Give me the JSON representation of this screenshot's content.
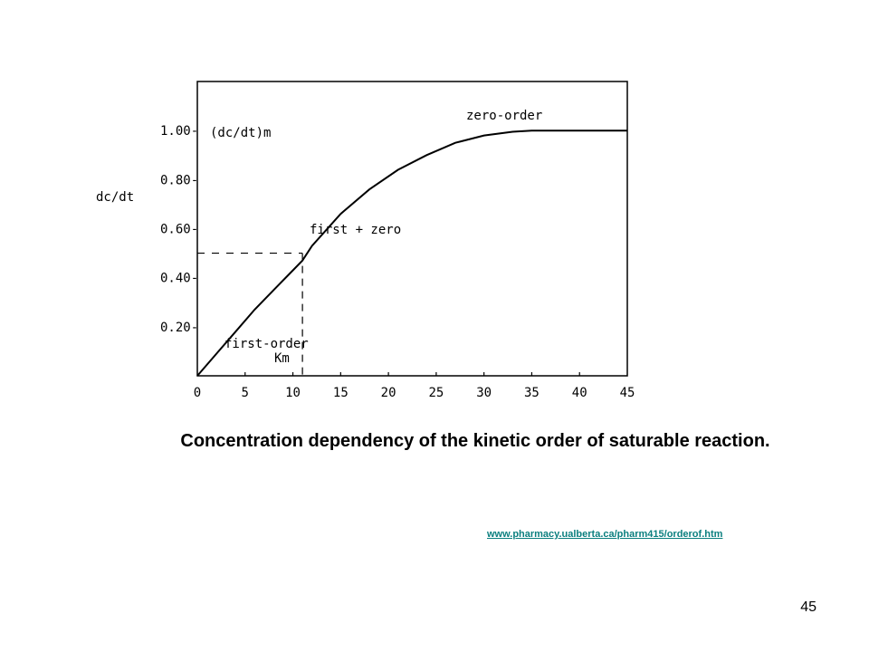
{
  "chart_data": {
    "type": "line",
    "title": "",
    "xlabel": "",
    "ylabel": "dc/dt",
    "xlim": [
      0,
      45
    ],
    "ylim": [
      0,
      1.2
    ],
    "x_ticks": [
      "0",
      "5",
      "10",
      "15",
      "20",
      "25",
      "30",
      "35",
      "40",
      "45"
    ],
    "y_ticks": [
      "0.20-",
      "0.40-",
      "0.60-",
      "0.80-",
      "1.00-"
    ],
    "series": [
      {
        "x": [
          0,
          2,
          4,
          6,
          8,
          10,
          11,
          12,
          15,
          18,
          21,
          24,
          27,
          30,
          33,
          35,
          36,
          40,
          45
        ],
        "y": [
          0,
          0.09,
          0.18,
          0.27,
          0.35,
          0.43,
          0.47,
          0.53,
          0.66,
          0.76,
          0.84,
          0.9,
          0.95,
          0.98,
          0.995,
          1.0,
          1.0,
          1.0,
          1.0
        ]
      }
    ],
    "km": {
      "x": 11,
      "y": 0.5,
      "label": "Km"
    },
    "annotations": {
      "ymax_label": "(dc/dt)m",
      "zero_order": "zero-order",
      "first_plus_zero": "first + zero",
      "first_order": "first-order"
    },
    "grid": false,
    "legend": "none"
  },
  "caption": "Concentration dependency of the kinetic order of saturable reaction.",
  "source_link": "www.pharmacy.ualberta.ca/pharm415/orderof.htm",
  "page_number": "45"
}
